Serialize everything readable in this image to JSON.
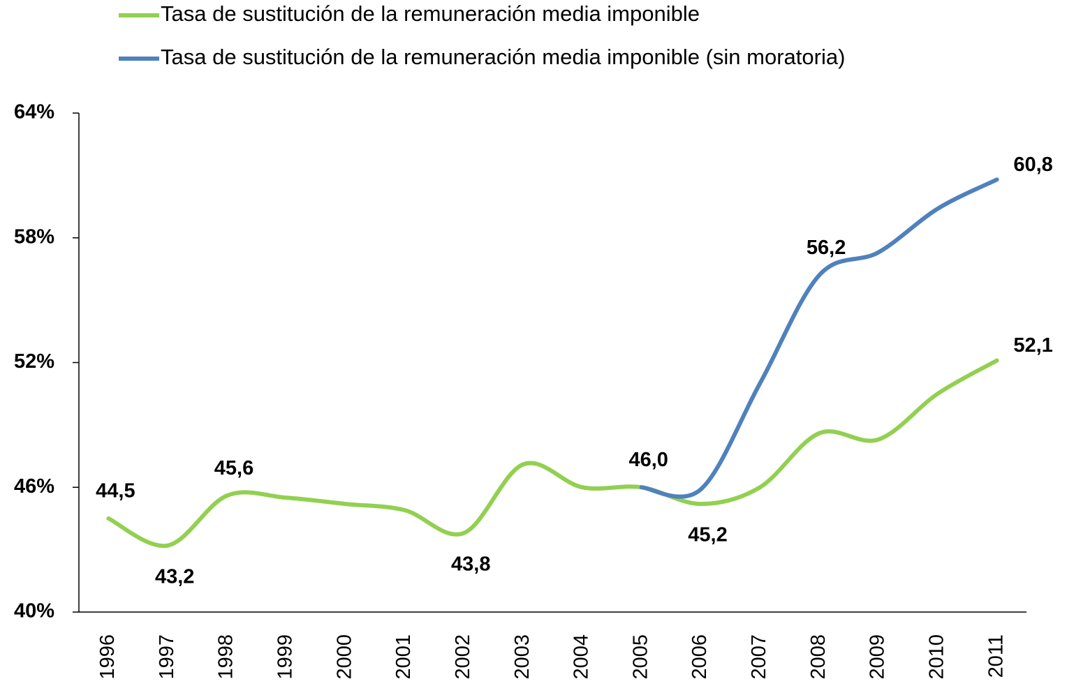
{
  "chart_data": {
    "type": "line",
    "categories": [
      "1996",
      "1997",
      "1998",
      "1999",
      "2000",
      "2001",
      "2002",
      "2003",
      "2004",
      "2005",
      "2006",
      "2007",
      "2008",
      "2009",
      "2010",
      "2011"
    ],
    "series": [
      {
        "name": "Tasa de sustitución de la remuneración media imponible",
        "color": "#92d050",
        "values": [
          44.5,
          43.2,
          45.6,
          45.5,
          45.2,
          44.9,
          43.8,
          47.1,
          46.0,
          46.0,
          45.2,
          46.0,
          48.6,
          48.3,
          50.5,
          52.1
        ],
        "value_labels": [
          "44,5",
          "43,2",
          "45,6",
          null,
          null,
          null,
          "43,8",
          null,
          null,
          "46,0",
          "45,2",
          null,
          null,
          null,
          null,
          "52,1"
        ]
      },
      {
        "name": "Tasa de sustitución de la remuneración media imponible (sin moratoria)",
        "color": "#4f81bd",
        "values": [
          null,
          null,
          null,
          null,
          null,
          null,
          null,
          null,
          null,
          46.0,
          45.9,
          51.0,
          56.2,
          57.3,
          59.4,
          60.8
        ],
        "value_labels": [
          null,
          null,
          null,
          null,
          null,
          null,
          null,
          null,
          null,
          null,
          null,
          null,
          "56,2",
          null,
          null,
          "60,8"
        ]
      }
    ],
    "ylim": [
      40,
      64
    ],
    "yticks": [
      {
        "value": 40,
        "label": "40%"
      },
      {
        "value": 46,
        "label": "46%"
      },
      {
        "value": 52,
        "label": "52%"
      },
      {
        "value": 58,
        "label": "58%"
      },
      {
        "value": 64,
        "label": "64%"
      }
    ],
    "grid": false,
    "legend": "top"
  }
}
